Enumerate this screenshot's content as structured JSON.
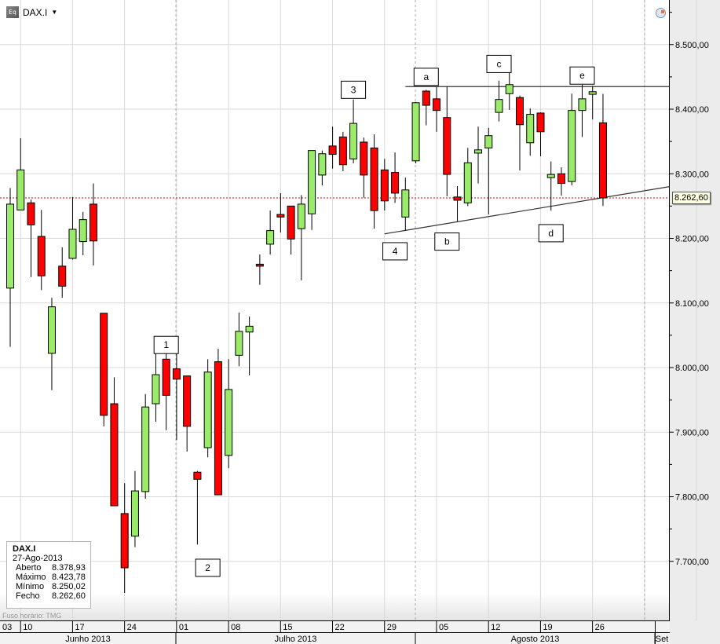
{
  "header": {
    "symbol": "DAX.I",
    "icon": "equity-icon",
    "dropdown_icon": "caret-down-icon",
    "clock_icon": "clock-icon"
  },
  "info_box": {
    "symbol": "DAX.I",
    "date": "27-Ago-2013",
    "rows": [
      {
        "label": "Aberto",
        "value": "8.378,93"
      },
      {
        "label": "Máximo",
        "value": "8.423,78"
      },
      {
        "label": "Mínimo",
        "value": "8.250,02"
      },
      {
        "label": "Fecho",
        "value": "8.262,60"
      }
    ]
  },
  "timezone_note": "Fuso horário: TMG",
  "last_price_label": "8.262,60",
  "colors": {
    "up": "#9aeb6a",
    "down": "#ff0000",
    "last_price_line": "#dd0000",
    "grid": "#d9d9d9"
  },
  "chart_data": {
    "type": "candlestick",
    "title": "DAX.I",
    "ylim": [
      7640,
      8565
    ],
    "y_ticks": [
      "8.500,00",
      "8.400,00",
      "8.300,00",
      "8.200,00",
      "8.100,00",
      "8.000,00",
      "7.900,00",
      "7.800,00",
      "7.700,00"
    ],
    "y_tick_values": [
      8500,
      8400,
      8300,
      8200,
      8100,
      8000,
      7900,
      7800,
      7700
    ],
    "x_day_labels": [
      "03",
      "10",
      "17",
      "24",
      "01",
      "08",
      "15",
      "22",
      "29",
      "05",
      "12",
      "19",
      "26"
    ],
    "x_month_labels": [
      "Junho 2013",
      "Julho 2013",
      "Agosto 2013",
      "Set"
    ],
    "grid": true,
    "last_price": 8262.6,
    "dates": [
      "2013-06-07",
      "2013-06-10",
      "2013-06-11",
      "2013-06-12",
      "2013-06-13",
      "2013-06-14",
      "2013-06-17",
      "2013-06-18",
      "2013-06-19",
      "2013-06-20",
      "2013-06-21",
      "2013-06-24",
      "2013-06-25",
      "2013-06-26",
      "2013-06-27",
      "2013-06-28",
      "2013-07-01",
      "2013-07-02",
      "2013-07-03",
      "2013-07-04",
      "2013-07-05",
      "2013-07-08",
      "2013-07-09",
      "2013-07-10",
      "2013-07-11",
      "2013-07-12",
      "2013-07-15",
      "2013-07-16",
      "2013-07-17",
      "2013-07-18",
      "2013-07-19",
      "2013-07-22",
      "2013-07-23",
      "2013-07-24",
      "2013-07-25",
      "2013-07-26",
      "2013-07-29",
      "2013-07-30",
      "2013-07-31",
      "2013-08-01",
      "2013-08-02",
      "2013-08-05",
      "2013-08-06",
      "2013-08-07",
      "2013-08-08",
      "2013-08-09",
      "2013-08-12",
      "2013-08-13",
      "2013-08-14",
      "2013-08-15",
      "2013-08-16",
      "2013-08-19",
      "2013-08-20",
      "2013-08-21",
      "2013-08-22",
      "2013-08-23",
      "2013-08-26",
      "2013-08-27"
    ],
    "ohlc": [
      [
        8123,
        8278,
        8032,
        8253
      ],
      [
        8244,
        8355,
        8244,
        8306
      ],
      [
        8255,
        8260,
        8140,
        8221
      ],
      [
        8203,
        8244,
        8120,
        8142
      ],
      [
        8022,
        8108,
        7965,
        8094
      ],
      [
        8157,
        8186,
        8108,
        8126
      ],
      [
        8169,
        8264,
        8167,
        8214
      ],
      [
        8195,
        8241,
        8174,
        8229
      ],
      [
        8253,
        8285,
        8158,
        8196
      ],
      [
        8084,
        8084,
        7909,
        7926
      ],
      [
        7944,
        7985,
        7786,
        7786
      ],
      [
        7774,
        7821,
        7651,
        7690
      ],
      [
        7739,
        7840,
        7722,
        7809
      ],
      [
        7808,
        7959,
        7797,
        7939
      ],
      [
        7944,
        8024,
        7916,
        7989
      ],
      [
        8013,
        8035,
        7903,
        7957
      ],
      [
        7998,
        8021,
        7888,
        7982
      ],
      [
        7987,
        7987,
        7870,
        7909
      ],
      [
        7838,
        7840,
        7726,
        7827
      ],
      [
        7876,
        8013,
        7861,
        7993
      ],
      [
        8009,
        8029,
        7803,
        7803
      ],
      [
        7864,
        8013,
        7844,
        7966
      ],
      [
        8019,
        8085,
        8002,
        8056
      ],
      [
        8055,
        8079,
        7988,
        8064
      ],
      [
        8160,
        8175,
        8128,
        8157
      ],
      [
        8191,
        8243,
        8175,
        8212
      ],
      [
        8237,
        8270,
        8209,
        8233
      ],
      [
        8250,
        8250,
        8175,
        8199
      ],
      [
        8215,
        8267,
        8135,
        8253
      ],
      [
        8238,
        8336,
        8213,
        8336
      ],
      [
        8298,
        8336,
        8282,
        8331
      ],
      [
        8343,
        8373,
        8308,
        8330
      ],
      [
        8357,
        8365,
        8304,
        8314
      ],
      [
        8323,
        8415,
        8316,
        8378
      ],
      [
        8349,
        8356,
        8263,
        8298
      ],
      [
        8340,
        8361,
        8215,
        8243
      ],
      [
        8306,
        8323,
        8243,
        8258
      ],
      [
        8302,
        8333,
        8255,
        8270
      ],
      [
        8233,
        8294,
        8212,
        8275
      ],
      [
        8320,
        8411,
        8316,
        8410
      ],
      [
        8428,
        8430,
        8375,
        8406
      ],
      [
        8416,
        8434,
        8365,
        8398
      ],
      [
        8387,
        8435,
        8265,
        8299
      ],
      [
        8264,
        8281,
        8226,
        8259
      ],
      [
        8255,
        8340,
        8250,
        8317
      ],
      [
        8332,
        8373,
        8285,
        8337
      ],
      [
        8340,
        8371,
        8237,
        8359
      ],
      [
        8395,
        8444,
        8381,
        8415
      ],
      [
        8424,
        8456,
        8399,
        8438
      ],
      [
        8418,
        8421,
        8305,
        8376
      ],
      [
        8348,
        8401,
        8328,
        8392
      ],
      [
        8394,
        8395,
        8327,
        8365
      ],
      [
        8294,
        8319,
        8243,
        8299
      ],
      [
        8300,
        8310,
        8266,
        8285
      ],
      [
        8288,
        8424,
        8282,
        8398
      ],
      [
        8398,
        8438,
        8357,
        8416
      ],
      [
        8423,
        8436,
        8384,
        8427
      ],
      [
        8378.93,
        8423.78,
        8250.02,
        8262.6
      ]
    ],
    "annotations": [
      {
        "text": "1",
        "date": "2013-06-28",
        "price": 8035
      },
      {
        "text": "2",
        "date": "2013-07-04",
        "price": 7690
      },
      {
        "text": "3",
        "date": "2013-07-24",
        "price": 8430
      },
      {
        "text": "4",
        "date": "2013-07-30",
        "price": 8180
      },
      {
        "text": "a",
        "date": "2013-08-02",
        "price": 8450
      },
      {
        "text": "b",
        "date": "2013-08-06",
        "price": 8195
      },
      {
        "text": "c",
        "date": "2013-08-13",
        "price": 8470
      },
      {
        "text": "d",
        "date": "2013-08-20",
        "price": 8208
      },
      {
        "text": "e",
        "date": "2013-08-23",
        "price": 8452
      }
    ],
    "trendlines": [
      {
        "name": "resistance",
        "from": {
          "date": "2013-07-31",
          "price": 8435
        },
        "to": {
          "date": "2013-08-27",
          "price": 8435
        },
        "extend_right": true
      },
      {
        "name": "support",
        "from": {
          "date": "2013-07-29",
          "price": 8207
        },
        "to": {
          "date": "2013-08-27",
          "price": 8263
        },
        "extend_right": true
      }
    ]
  }
}
